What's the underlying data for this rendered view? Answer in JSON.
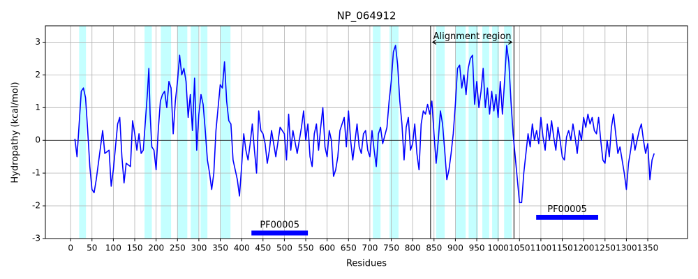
{
  "chart_data": {
    "type": "line",
    "title": "NP_064912",
    "xlabel": "Residues",
    "ylabel": "Hydropathy (kcal/mol)",
    "x": [
      10,
      15,
      20,
      25,
      30,
      35,
      40,
      45,
      50,
      55,
      60,
      70,
      75,
      80,
      90,
      95,
      100,
      110,
      115,
      120,
      125,
      130,
      140,
      145,
      150,
      155,
      160,
      165,
      170,
      175,
      180,
      183,
      186,
      190,
      195,
      200,
      205,
      210,
      215,
      220,
      225,
      230,
      235,
      240,
      245,
      250,
      255,
      260,
      265,
      270,
      275,
      280,
      285,
      290,
      295,
      300,
      305,
      310,
      315,
      320,
      325,
      330,
      335,
      340,
      345,
      350,
      355,
      360,
      365,
      370,
      375,
      380,
      385,
      390,
      395,
      400,
      405,
      410,
      415,
      420,
      425,
      430,
      435,
      440,
      445,
      450,
      455,
      460,
      465,
      470,
      480,
      490,
      500,
      505,
      510,
      515,
      520,
      530,
      540,
      545,
      550,
      555,
      560,
      565,
      570,
      575,
      580,
      585,
      590,
      595,
      600,
      605,
      610,
      615,
      620,
      625,
      630,
      640,
      645,
      650,
      655,
      660,
      670,
      675,
      680,
      685,
      690,
      695,
      700,
      705,
      710,
      715,
      720,
      725,
      730,
      740,
      745,
      750,
      755,
      760,
      765,
      770,
      775,
      780,
      785,
      790,
      795,
      800,
      805,
      810,
      815,
      820,
      825,
      830,
      835,
      840,
      845,
      850,
      855,
      860,
      865,
      870,
      875,
      880,
      885,
      890,
      895,
      900,
      905,
      910,
      915,
      920,
      925,
      930,
      935,
      940,
      945,
      950,
      955,
      960,
      965,
      970,
      975,
      980,
      985,
      990,
      995,
      1000,
      1005,
      1010,
      1015,
      1020,
      1025,
      1030,
      1035,
      1040,
      1045,
      1050,
      1055,
      1060,
      1065,
      1070,
      1075,
      1080,
      1085,
      1090,
      1095,
      1100,
      1105,
      1110,
      1115,
      1120,
      1125,
      1130,
      1135,
      1140,
      1145,
      1150,
      1155,
      1160,
      1165,
      1170,
      1175,
      1180,
      1185,
      1190,
      1195,
      1200,
      1205,
      1210,
      1215,
      1220,
      1225,
      1230,
      1235,
      1240,
      1245,
      1250,
      1255,
      1260,
      1265,
      1270,
      1275,
      1280,
      1285,
      1290,
      1295,
      1300,
      1305,
      1310,
      1315,
      1320,
      1325,
      1330,
      1335,
      1340,
      1345,
      1350,
      1355,
      1360,
      1365
    ],
    "series": [
      {
        "color": "#0000ff",
        "values": [
          0.05,
          -0.5,
          0.5,
          1.5,
          1.6,
          1.3,
          0.3,
          -0.8,
          -1.5,
          -1.6,
          -1.2,
          -0.2,
          0.3,
          -0.4,
          -0.3,
          -1.4,
          -0.9,
          0.5,
          0.7,
          -0.5,
          -1.3,
          -0.7,
          -0.8,
          0.6,
          0.2,
          -0.3,
          0.2,
          -0.4,
          -0.3,
          0.6,
          1.5,
          2.2,
          0.8,
          -0.2,
          -0.3,
          -0.9,
          0.3,
          1.2,
          1.4,
          1.5,
          1.0,
          1.8,
          1.6,
          0.2,
          1.2,
          1.8,
          2.6,
          2.0,
          2.2,
          1.8,
          0.7,
          1.4,
          0.3,
          1.9,
          -0.3,
          0.8,
          1.4,
          1.1,
          0.3,
          -0.6,
          -1.0,
          -1.5,
          -1.0,
          0.3,
          1.0,
          1.7,
          1.6,
          2.4,
          1.2,
          0.6,
          0.5,
          -0.6,
          -0.9,
          -1.2,
          -1.7,
          -0.8,
          0.2,
          -0.3,
          -0.6,
          -0.1,
          0.5,
          -0.3,
          -1.0,
          0.9,
          0.3,
          0.2,
          -0.1,
          -0.7,
          -0.3,
          0.3,
          -0.5,
          0.4,
          0.2,
          -0.6,
          0.8,
          -0.3,
          0.3,
          -0.4,
          0.4,
          0.9,
          0.0,
          0.5,
          -0.5,
          -0.8,
          0.2,
          0.5,
          -0.3,
          0.4,
          1.0,
          -0.2,
          -0.5,
          0.3,
          0.0,
          -1.1,
          -0.9,
          -0.5,
          0.3,
          0.7,
          -0.2,
          0.9,
          0.0,
          -0.6,
          0.5,
          -0.2,
          -0.4,
          0.2,
          0.3,
          -0.3,
          -0.5,
          0.3,
          -0.3,
          -0.8,
          0.2,
          0.4,
          -0.1,
          0.4,
          1.2,
          1.8,
          2.7,
          2.9,
          2.3,
          1.2,
          0.5,
          -0.6,
          0.4,
          0.7,
          -0.3,
          -0.1,
          0.5,
          -0.4,
          -0.9,
          0.5,
          0.9,
          0.8,
          1.1,
          0.8,
          1.2,
          0.2,
          -0.7,
          0.0,
          0.9,
          0.5,
          -0.3,
          -1.2,
          -0.9,
          -0.4,
          0.2,
          1.1,
          2.2,
          2.3,
          1.6,
          2.0,
          1.4,
          2.2,
          2.5,
          2.6,
          1.1,
          1.8,
          1.0,
          1.5,
          2.2,
          1.0,
          1.6,
          0.8,
          1.5,
          0.9,
          1.4,
          0.7,
          1.8,
          0.8,
          1.8,
          2.9,
          2.4,
          1.2,
          0.2,
          -0.5,
          -1.2,
          -1.9,
          -1.9,
          -1.0,
          -0.4,
          0.2,
          -0.2,
          0.5,
          0.0,
          0.3,
          -0.1,
          0.7,
          0.1,
          -0.3,
          0.5,
          0.0,
          0.6,
          0.1,
          -0.3,
          0.4,
          0.0,
          -0.5,
          -0.6,
          0.1,
          0.3,
          0.0,
          0.5,
          0.1,
          -0.4,
          0.3,
          0.0,
          0.7,
          0.4,
          0.8,
          0.5,
          0.7,
          0.3,
          0.2,
          0.7,
          0.0,
          -0.6,
          -0.7,
          0.0,
          -0.5,
          0.4,
          0.8,
          0.2,
          -0.4,
          -0.2,
          -0.6,
          -1.0,
          -1.5,
          -0.7,
          -0.3,
          0.2,
          -0.3,
          0.0,
          0.3,
          0.5,
          0.0,
          -0.4,
          -0.1,
          -1.2,
          -0.6,
          -0.4
        ]
      }
    ],
    "highlight_color": "#c4ffff",
    "highlight_regions": [
      [
        20,
        36
      ],
      [
        173,
        190
      ],
      [
        211,
        235
      ],
      [
        250,
        273
      ],
      [
        281,
        299
      ],
      [
        304,
        320
      ],
      [
        351,
        374
      ],
      [
        707,
        725
      ],
      [
        746,
        767
      ],
      [
        855,
        875
      ],
      [
        901,
        924
      ],
      [
        931,
        953
      ],
      [
        963,
        979
      ],
      [
        986,
        1002
      ],
      [
        1014,
        1032
      ]
    ],
    "alignment": {
      "label": "Alignment region",
      "start": 842,
      "end": 1037,
      "y": 3
    },
    "domains": [
      {
        "label": "PF00005",
        "start": 423,
        "end": 555,
        "y": -2.83,
        "color": "#0000ff"
      },
      {
        "label": "PF00005",
        "start": 1089,
        "end": 1234,
        "y": -2.35,
        "color": "#0000ff"
      }
    ],
    "xlim": [
      -59,
      1443
    ],
    "ylim": [
      -3,
      3.5
    ],
    "xticks": [
      0,
      50,
      100,
      150,
      200,
      250,
      300,
      350,
      400,
      450,
      500,
      550,
      600,
      650,
      700,
      750,
      800,
      850,
      900,
      950,
      1000,
      1050,
      1100,
      1150,
      1200,
      1250,
      1300,
      1350
    ],
    "yticks": [
      -3,
      -2,
      -1,
      0,
      1,
      2,
      3
    ],
    "grid": true
  }
}
